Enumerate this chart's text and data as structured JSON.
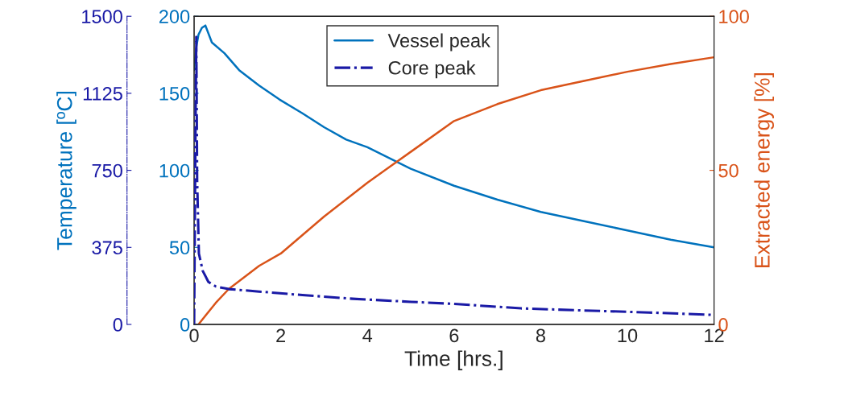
{
  "chart_data": {
    "type": "line",
    "xlabel": "Time [hrs.]",
    "ylabel": "Temperature [ºC]",
    "y2label": "Extracted energy [%]",
    "xlim": [
      0,
      12
    ],
    "xticks": [
      0,
      2,
      4,
      6,
      8,
      10,
      12
    ],
    "ylim": [
      0,
      200
    ],
    "yticks": [
      0,
      50,
      100,
      150,
      200
    ],
    "y2lim": [
      0,
      100
    ],
    "y2ticks": [
      0,
      50,
      100
    ],
    "y3lim": [
      0,
      1500
    ],
    "y3ticks": [
      0,
      375,
      750,
      1125,
      1500
    ],
    "legend": "top",
    "grid": false,
    "series": [
      {
        "name": "Vessel peak",
        "color": "#0072bd",
        "line_style": "solid",
        "axis": "y",
        "x": [
          0,
          0.05,
          0.1,
          0.18,
          0.26,
          0.41,
          0.7,
          1.04,
          1.5,
          1.97,
          2.5,
          3,
          3.51,
          4,
          5,
          6,
          7,
          8,
          9,
          10,
          11,
          12
        ],
        "values": [
          165,
          180,
          188,
          192.5,
          194,
          183,
          176,
          165,
          155,
          146,
          137,
          128,
          120,
          115,
          101,
          90,
          81,
          73,
          67,
          61,
          55,
          50
        ]
      },
      {
        "name": "Core peak",
        "color": "#1a1aa6",
        "line_style": "dashdot",
        "axis": "y3",
        "x": [
          0,
          0.03,
          0.05,
          0.07,
          0.11,
          0.2,
          0.33,
          0.5,
          0.8,
          1.5,
          2.5,
          3.66,
          5,
          6,
          7.55,
          9,
          10.5,
          11.9,
          12
        ],
        "values": [
          0,
          900,
          1400,
          700,
          345,
          260,
          207,
          185,
          172,
          160,
          143,
          125,
          110,
          100,
          78,
          68,
          58,
          47,
          46
        ]
      },
      {
        "color": "#d95319",
        "line_style": "solid",
        "axis": "y2",
        "x": [
          0.1,
          0.5,
          0.8,
          1.5,
          2,
          3,
          4,
          4.5,
          5,
          6,
          7,
          8,
          9,
          10,
          11,
          12
        ],
        "values": [
          0,
          7,
          11.5,
          19,
          23,
          35,
          46,
          51,
          56,
          66,
          71.5,
          76,
          79,
          82,
          84.5,
          86.7
        ]
      }
    ]
  }
}
